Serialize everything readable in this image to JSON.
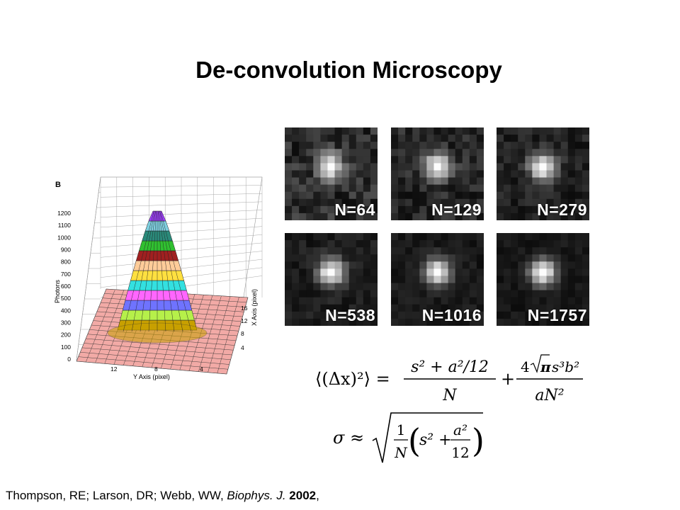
{
  "slide": {
    "title": "De-convolution Microscopy",
    "citation": {
      "authors": "Thompson, RE; Larson, DR; Webb, WW, ",
      "journal": "Biophys. J.",
      "year": "2002",
      "trailing": ","
    }
  },
  "figure_b": {
    "panel_label": "B",
    "z_axis_label": "Photons",
    "z_ticks": [
      "1200",
      "1100",
      "1000",
      "900",
      "800",
      "700",
      "600",
      "500",
      "400",
      "300",
      "200",
      "100",
      "0"
    ],
    "y_axis_label": "Y Axis (pixel)",
    "y_ticks": [
      "12",
      "8",
      "4"
    ],
    "x_axis_label": "X Axis (pixel)",
    "x_ticks": [
      "16",
      "12",
      "8",
      "4"
    ],
    "band_colors": [
      "#c8a000",
      "#b6f04a",
      "#6f73ff",
      "#ff66ff",
      "#33e0e0",
      "#ffe040",
      "#ffcc99",
      "#a02020",
      "#30c030",
      "#2a8a7a",
      "#7fd0e0",
      "#a040ff"
    ]
  },
  "spot_images": [
    {
      "label": "N=64"
    },
    {
      "label": "N=129"
    },
    {
      "label": "N=279"
    },
    {
      "label": "N=538"
    },
    {
      "label": "N=1016"
    },
    {
      "label": "N=1757"
    }
  ],
  "equations": {
    "variance_lhs": "⟨(Δx)²⟩ =",
    "variance_term1_num": "s² + a²/12",
    "variance_term1_den": "N",
    "plus": "+",
    "variance_term2_num_coef": "4",
    "variance_term2_num_pi": "π",
    "variance_term2_num_rest": "s³b²",
    "variance_term2_den": "aN²",
    "sigma_lhs": "σ ≈",
    "sigma_frac_num": "1",
    "sigma_frac_den": "N",
    "sigma_inner_s": "s² +",
    "sigma_inner_num": "a²",
    "sigma_inner_den": "12"
  }
}
